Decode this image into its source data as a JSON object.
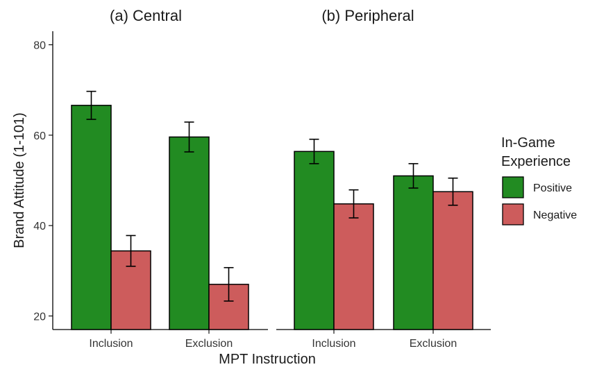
{
  "chart_data": {
    "type": "bar",
    "ylabel": "Brand Attitude (1-101)",
    "xlabel": "MPT Instruction",
    "yticks": [
      20,
      40,
      60,
      80
    ],
    "ylim": [
      17,
      83
    ],
    "legend": {
      "title_lines": [
        "In-Game",
        "Experience"
      ],
      "placement": "right",
      "entries": [
        {
          "name": "Positive",
          "color": "#228b22"
        },
        {
          "name": "Negative",
          "color": "#cd5c5c"
        }
      ]
    },
    "panels": [
      {
        "title": "(a) Central",
        "categories": [
          "Inclusion",
          "Exclusion"
        ],
        "series": [
          {
            "name": "Positive",
            "values": [
              66.6,
              59.6
            ],
            "err_low": [
              63.5,
              56.3
            ],
            "err_high": [
              69.7,
              62.9
            ]
          },
          {
            "name": "Negative",
            "values": [
              34.4,
              27.0
            ],
            "err_low": [
              31.0,
              23.3
            ],
            "err_high": [
              37.8,
              30.7
            ]
          }
        ]
      },
      {
        "title": "(b) Peripheral",
        "categories": [
          "Inclusion",
          "Exclusion"
        ],
        "series": [
          {
            "name": "Positive",
            "values": [
              56.4,
              51.0
            ],
            "err_low": [
              53.7,
              48.3
            ],
            "err_high": [
              59.1,
              53.7
            ]
          },
          {
            "name": "Negative",
            "values": [
              44.8,
              47.5
            ],
            "err_low": [
              41.7,
              44.5
            ],
            "err_high": [
              47.9,
              50.5
            ]
          }
        ]
      }
    ]
  }
}
